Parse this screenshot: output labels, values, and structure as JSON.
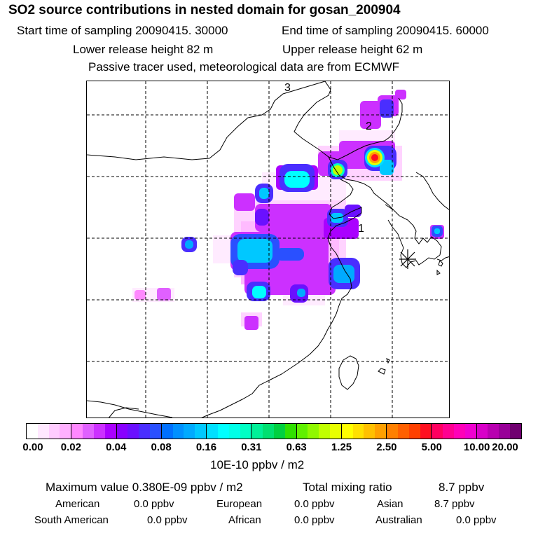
{
  "header": {
    "title": "SO2 source contributions in nested domain for gosan_200904",
    "start_time": "Start time of sampling 20090415. 30000",
    "end_time": "End time of sampling 20090415. 60000",
    "lower_height": "Lower release height   82 m",
    "upper_height": "Upper release height   62 m",
    "tracer_note": "Passive tracer used, meteorological data are from ECMWF"
  },
  "map": {
    "markers": [
      {
        "label": "3"
      },
      {
        "label": "2"
      },
      {
        "label": "1"
      }
    ],
    "receptor_symbol": "asterisk"
  },
  "colorbar": {
    "labels": [
      "0.00",
      "0.02",
      "0.04",
      "0.08",
      "0.16",
      "0.31",
      "0.63",
      "1.25",
      "2.50",
      "5.00",
      "10.00",
      "20.00"
    ],
    "groups": [
      [
        "#ffffff",
        "#ffe8ff",
        "#ffccff",
        "#ffb0ff"
      ],
      [
        "#ff88ff",
        "#e060ff",
        "#cc30ff",
        "#aa00ff"
      ],
      [
        "#8800ff",
        "#6a10ff",
        "#4a2eff",
        "#2a50ff"
      ],
      [
        "#0070ff",
        "#0090ff",
        "#00aaff",
        "#00c8ff"
      ],
      [
        "#00e0ff",
        "#00ffff",
        "#00ffe8",
        "#00ffc4"
      ],
      [
        "#00f098",
        "#00e070",
        "#00d040",
        "#30e000"
      ],
      [
        "#60f000",
        "#90f800",
        "#c0ff00",
        "#e8ff00"
      ],
      [
        "#ffff00",
        "#ffe000",
        "#ffc000",
        "#ffa000"
      ],
      [
        "#ff8000",
        "#ff6000",
        "#ff4000",
        "#ff1020"
      ],
      [
        "#ff0060",
        "#ff0090",
        "#ff00b8",
        "#f000d0"
      ],
      [
        "#d800c8",
        "#b800b0",
        "#980098",
        "#700070"
      ]
    ],
    "units": "10E-10 ppbv / m2"
  },
  "summary": {
    "max_value": "Maximum value  0.380E-09 ppbv / m2",
    "total_mixing_label": "Total mixing ratio",
    "total_mixing_value": "8.7 ppbv",
    "american_label": "American",
    "american_value": "0.0 ppbv",
    "european_label": "European",
    "european_value": "0.0 ppbv",
    "asian_label": "Asian",
    "asian_value": "8.7 ppbv",
    "south_american_label": "South American",
    "south_american_value": "0.0 ppbv",
    "african_label": "African",
    "african_value": "0.0 ppbv",
    "australian_label": "Australian",
    "australian_value": "0.0 ppbv"
  },
  "plume": [
    {
      "c": "#cc30ff",
      "v": 0.05
    },
    {
      "c": "#ffb0ff",
      "v": 0.02
    },
    {
      "c": "#aa00ff",
      "v": 0.06
    },
    {
      "c": "#00e0ff",
      "v": 0.2
    },
    {
      "c": "#ff0000",
      "v": 3.8
    },
    {
      "c": "#ffa000",
      "v": 2.5
    },
    {
      "c": "#b0ff00",
      "v": 1.0
    }
  ]
}
